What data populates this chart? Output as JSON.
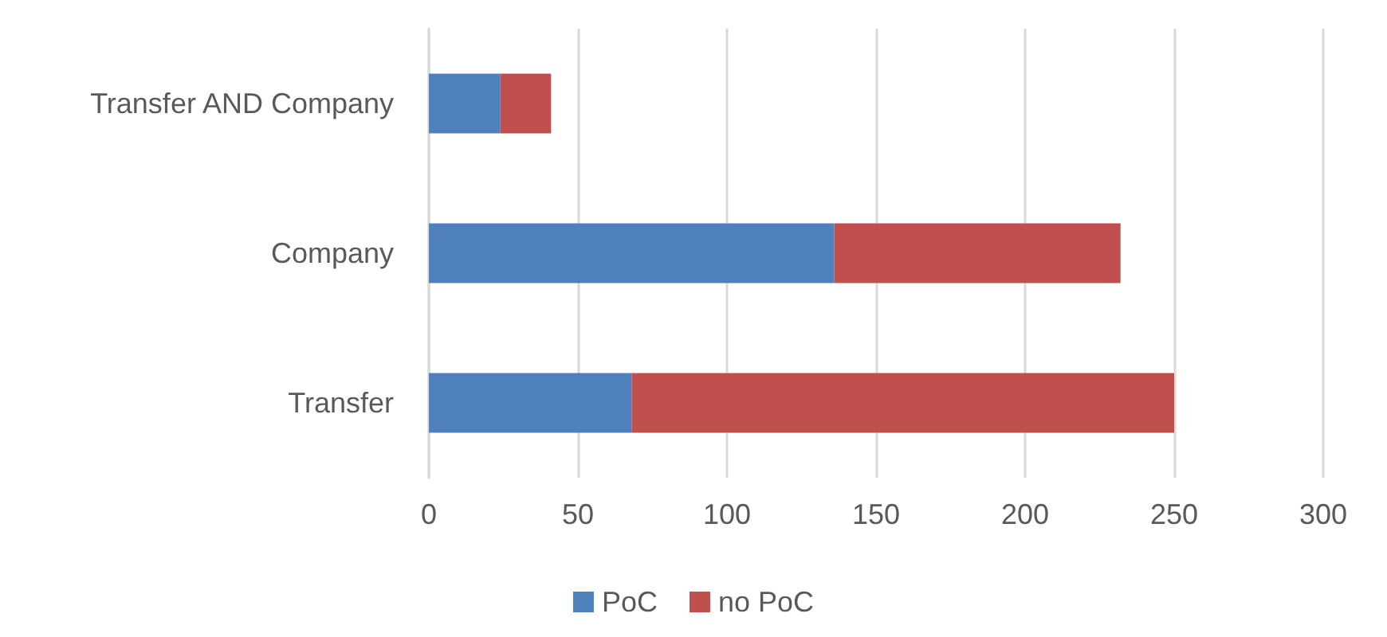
{
  "chart_data": {
    "type": "bar",
    "orientation": "horizontal",
    "stacked": true,
    "categories": [
      "Transfer AND Company",
      "Company",
      "Transfer"
    ],
    "series": [
      {
        "name": "PoC",
        "color": "#4f81bd",
        "values": [
          24,
          136,
          68
        ]
      },
      {
        "name": "no PoC",
        "color": "#c0504d",
        "values": [
          17,
          96,
          182
        ]
      }
    ],
    "xlim": [
      0,
      300
    ],
    "xticks": [
      0,
      50,
      100,
      150,
      200,
      250,
      300
    ],
    "grid": "x",
    "legend": "bottom"
  }
}
